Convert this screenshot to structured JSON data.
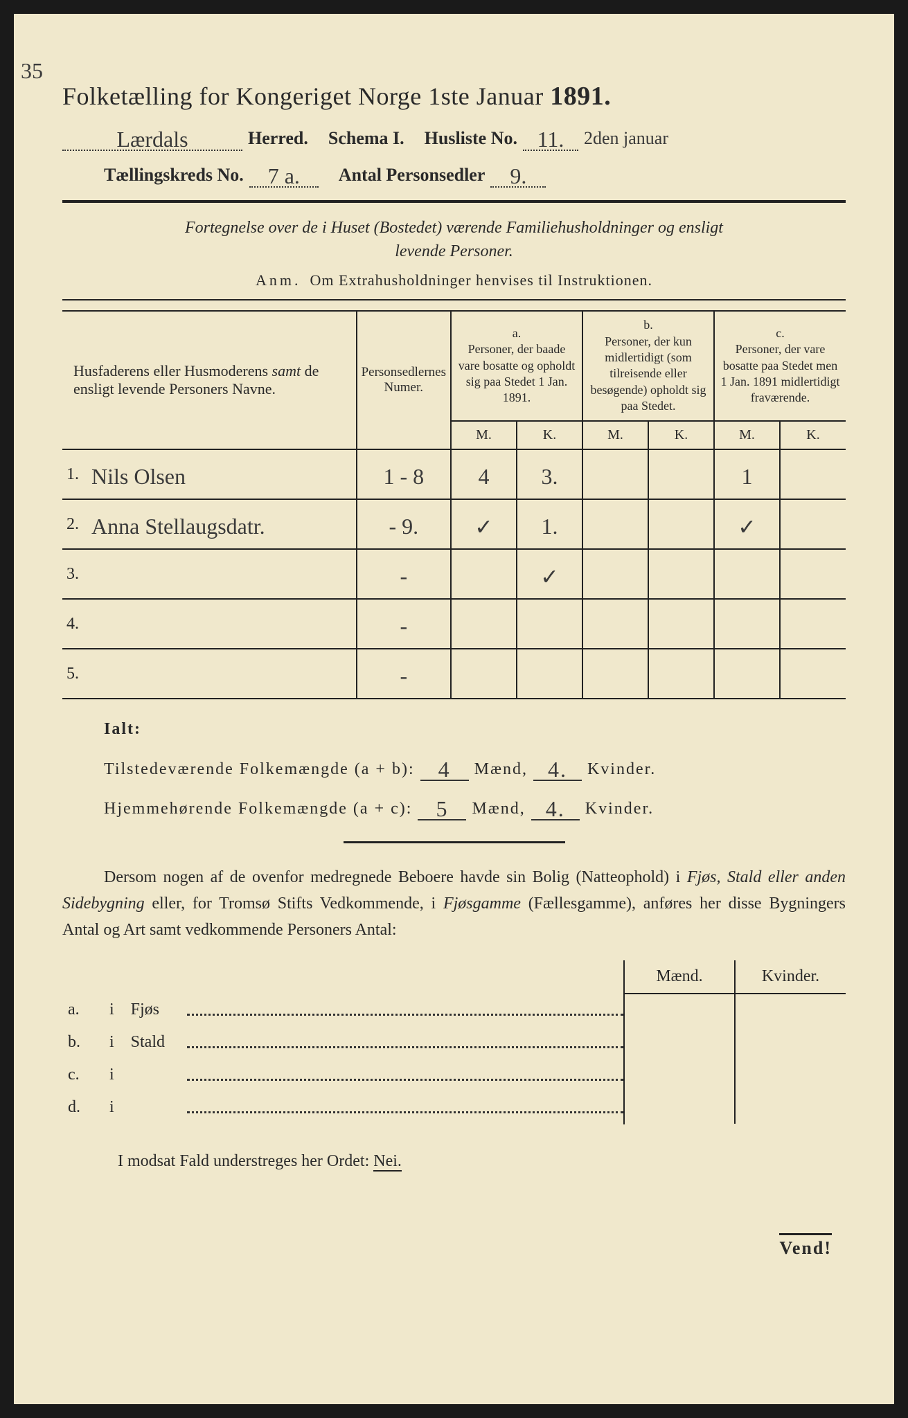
{
  "colors": {
    "paper": "#f0e8cc",
    "ink": "#2a2a2a",
    "pencil_blue": "#3a6a8a",
    "border": "#1a1a1a"
  },
  "page_number_handwritten": "35",
  "title": {
    "text_pre": "Folketælling for Kongeriget Norge 1ste Januar ",
    "year": "1891."
  },
  "header": {
    "herred_value": "Lærdals",
    "herred_label": "Herred.",
    "schema_label": "Schema I.",
    "husliste_label": "Husliste No.",
    "husliste_value": "11.",
    "date_note": "2den januar",
    "kreds_label": "Tællingskreds No.",
    "kreds_value": "7 a.",
    "antal_label": "Antal Personsedler",
    "antal_value": "9."
  },
  "description": {
    "line1": "Fortegnelse over de i Huset (Bostedet) værende Familiehusholdninger og ensligt",
    "line2": "levende Personer.",
    "anm_prefix": "Anm.",
    "anm_text": "Om Extrahusholdninger henvises til Instruktionen."
  },
  "table": {
    "col_name_header": "Husfaderens eller Husmoderens samt de ensligt levende Personers Navne.",
    "col_num_header": "Personsedlernes Numer.",
    "group_a": {
      "letter": "a.",
      "text": "Personer, der baade vare bosatte og opholdt sig paa Stedet 1 Jan. 1891."
    },
    "group_b": {
      "letter": "b.",
      "text": "Personer, der kun midlertidigt (som tilreisende eller besøgende) opholdt sig paa Stedet."
    },
    "group_c": {
      "letter": "c.",
      "text": "Personer, der vare bosatte paa Stedet men 1 Jan. 1891 midlertidigt fraværende."
    },
    "m_label": "M.",
    "k_label": "K.",
    "rows": [
      {
        "n": "1.",
        "name": "Nils Olsen",
        "num": "1 - 8",
        "a_m": "4",
        "a_k": "3.",
        "b_m": "",
        "b_k": "",
        "c_m": "1",
        "c_k": ""
      },
      {
        "n": "2.",
        "name": "Anna Stellaugsdatr.",
        "num": "- 9.",
        "a_m": "✓",
        "a_k": "1.",
        "b_m": "",
        "b_k": "",
        "c_m": "✓",
        "c_k": ""
      },
      {
        "n": "3.",
        "name": "",
        "num": "-",
        "a_m": "",
        "a_k": "✓",
        "b_m": "",
        "b_k": "",
        "c_m": "",
        "c_k": ""
      },
      {
        "n": "4.",
        "name": "",
        "num": "-",
        "a_m": "",
        "a_k": "",
        "b_m": "",
        "b_k": "",
        "c_m": "",
        "c_k": ""
      },
      {
        "n": "5.",
        "name": "",
        "num": "-",
        "a_m": "",
        "a_k": "",
        "b_m": "",
        "b_k": "",
        "c_m": "",
        "c_k": ""
      }
    ]
  },
  "ialt": {
    "title": "Ialt:",
    "row1_label": "Tilstedeværende Folkemængde (a + b):",
    "row1_m": "4",
    "row1_k": "4.",
    "row2_label": "Hjemmehørende Folkemængde (a + c):",
    "row2_m": "5",
    "row2_k": "4.",
    "maend": "Mænd,",
    "kvinder": "Kvinder."
  },
  "paragraph": {
    "text": "Dersom nogen af de ovenfor medregnede Beboere havde sin Bolig (Natteophold) i Fjøs, Stald eller anden Sidebygning eller, for Tromsø Stifts Vedkommende, i Fjøsgamme (Fællesgamme), anføres her disse Bygningers Antal og Art samt vedkommende Personers Antal:"
  },
  "side_table": {
    "maend": "Mænd.",
    "kvinder": "Kvinder.",
    "rows": [
      {
        "label": "a.",
        "i": "i",
        "type": "Fjøs"
      },
      {
        "label": "b.",
        "i": "i",
        "type": "Stald"
      },
      {
        "label": "c.",
        "i": "i",
        "type": ""
      },
      {
        "label": "d.",
        "i": "i",
        "type": ""
      }
    ]
  },
  "nei_line": {
    "pre": "I modsat Fald understreges her Ordet: ",
    "nei": "Nei."
  },
  "vend": "Vend!"
}
